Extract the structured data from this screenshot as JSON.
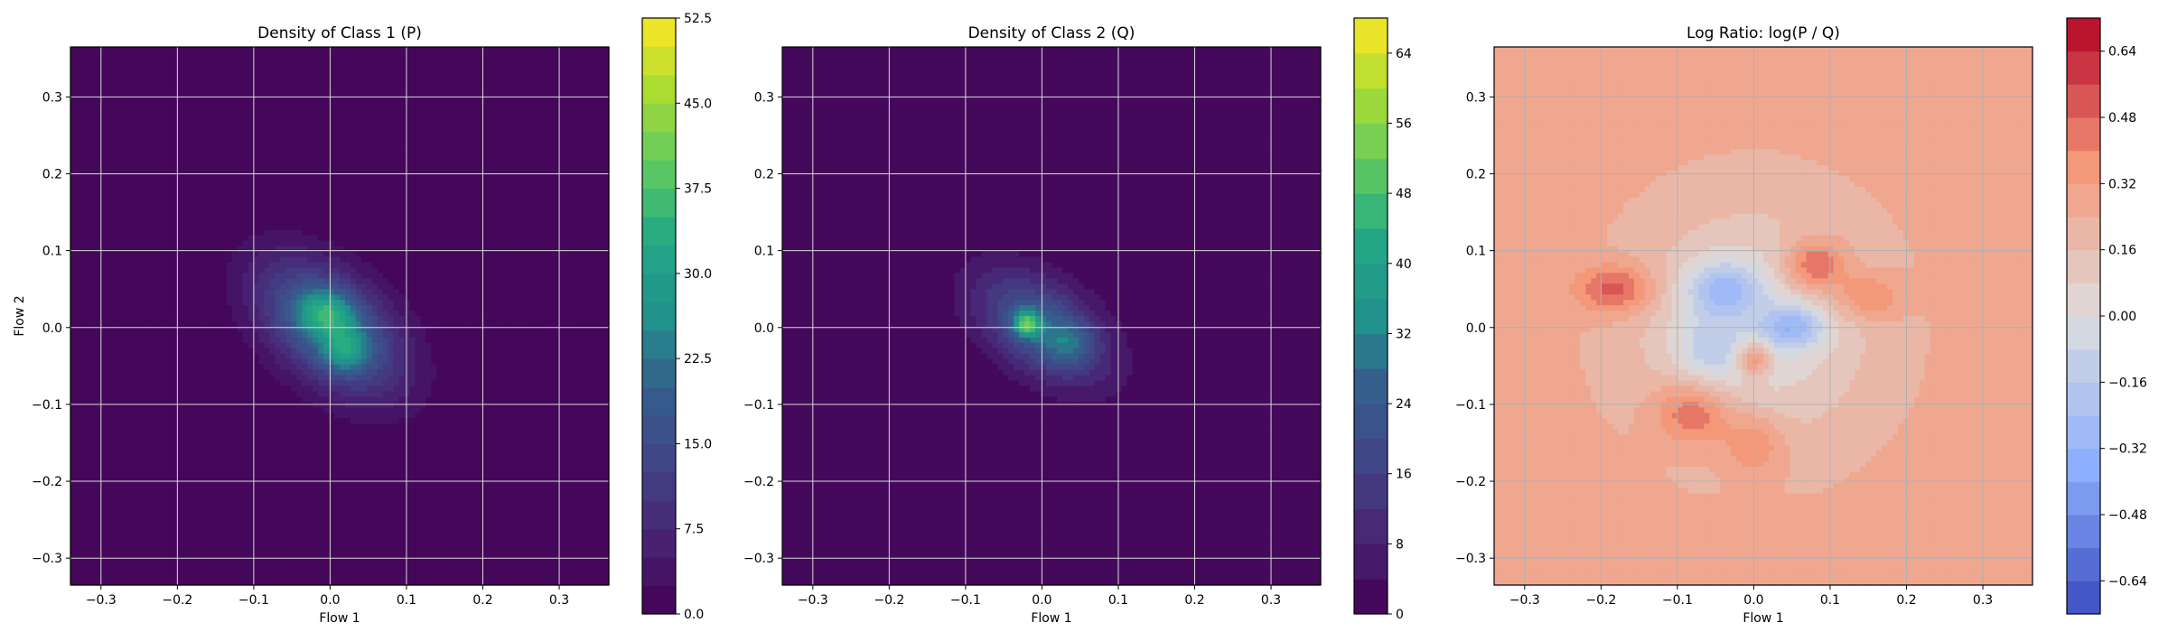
{
  "chart_data": [
    {
      "type": "heatmap",
      "title": "Density of Class 1 (P)",
      "xlabel": "Flow 1",
      "ylabel": "Flow 2",
      "xlim": [
        -0.34,
        0.365
      ],
      "ylim": [
        -0.335,
        0.365
      ],
      "xticks": [
        -0.3,
        -0.2,
        -0.1,
        0.0,
        0.1,
        0.2,
        0.3
      ],
      "yticks": [
        -0.3,
        -0.2,
        -0.1,
        0.0,
        0.1,
        0.2,
        0.3
      ],
      "xtick_labels": [
        "−0.3",
        "−0.2",
        "−0.1",
        "0.0",
        "0.1",
        "0.2",
        "0.3"
      ],
      "ytick_labels": [
        "−0.3",
        "−0.2",
        "−0.1",
        "0.0",
        "0.1",
        "0.2",
        "0.3"
      ],
      "grid": true,
      "colormap": "viridis",
      "colorbar": {
        "range": [
          0.0,
          52.5
        ],
        "levels": 21,
        "ticks": [
          0.0,
          7.5,
          15.0,
          22.5,
          30.0,
          37.5,
          45.0,
          52.5
        ],
        "tick_labels": [
          "0.0",
          "7.5",
          "15.0",
          "22.5",
          "30.0",
          "37.5",
          "45.0",
          "52.5"
        ]
      },
      "blobs": [
        {
          "cx": 0.0,
          "cy": 0.0,
          "sx": 0.075,
          "sy": 0.045,
          "angle": -40,
          "amp": 24
        },
        {
          "cx": -0.005,
          "cy": 0.02,
          "sx": 0.025,
          "sy": 0.02,
          "angle": 0,
          "amp": 14
        },
        {
          "cx": 0.02,
          "cy": -0.03,
          "sx": 0.02,
          "sy": 0.02,
          "angle": 0,
          "amp": 12
        }
      ]
    },
    {
      "type": "heatmap",
      "title": "Density of Class 2 (Q)",
      "xlabel": "Flow 1",
      "ylabel": "",
      "xlim": [
        -0.34,
        0.365
      ],
      "ylim": [
        -0.335,
        0.365
      ],
      "xticks": [
        -0.3,
        -0.2,
        -0.1,
        0.0,
        0.1,
        0.2,
        0.3
      ],
      "yticks": [
        -0.3,
        -0.2,
        -0.1,
        0.0,
        0.1,
        0.2,
        0.3
      ],
      "xtick_labels": [
        "−0.3",
        "−0.2",
        "−0.1",
        "0.0",
        "0.1",
        "0.2",
        "0.3"
      ],
      "ytick_labels": [
        "−0.3",
        "−0.2",
        "−0.1",
        "0.0",
        "0.1",
        "0.2",
        "0.3"
      ],
      "grid": true,
      "colormap": "viridis",
      "colorbar": {
        "range": [
          0,
          68
        ],
        "levels": 17,
        "ticks": [
          0,
          8,
          16,
          24,
          32,
          40,
          48,
          56,
          64
        ],
        "tick_labels": [
          "0",
          "8",
          "16",
          "24",
          "32",
          "40",
          "48",
          "56",
          "64"
        ]
      },
      "blobs": [
        {
          "cx": 0.0,
          "cy": 0.0,
          "sx": 0.068,
          "sy": 0.04,
          "angle": -35,
          "amp": 26
        },
        {
          "cx": -0.02,
          "cy": 0.005,
          "sx": 0.012,
          "sy": 0.012,
          "angle": 0,
          "amp": 30
        },
        {
          "cx": 0.035,
          "cy": -0.02,
          "sx": 0.022,
          "sy": 0.02,
          "angle": 0,
          "amp": 10
        }
      ]
    },
    {
      "type": "heatmap",
      "title": "Log Ratio: log(P / Q)",
      "xlabel": "Flow 1",
      "ylabel": "",
      "xlim": [
        -0.34,
        0.365
      ],
      "ylim": [
        -0.335,
        0.365
      ],
      "xticks": [
        -0.3,
        -0.2,
        -0.1,
        0.0,
        0.1,
        0.2,
        0.3
      ],
      "yticks": [
        -0.3,
        -0.2,
        -0.1,
        0.0,
        0.1,
        0.2,
        0.3
      ],
      "xtick_labels": [
        "−0.3",
        "−0.2",
        "−0.1",
        "0.0",
        "0.1",
        "0.2",
        "0.3"
      ],
      "ytick_labels": [
        "−0.3",
        "−0.2",
        "−0.1",
        "0.0",
        "0.1",
        "0.2",
        "0.3"
      ],
      "grid": true,
      "colormap": "coolwarm",
      "colorbar": {
        "range": [
          -0.72,
          0.72
        ],
        "levels": 18,
        "ticks": [
          -0.64,
          -0.48,
          -0.32,
          -0.16,
          0.0,
          0.16,
          0.32,
          0.48,
          0.64
        ],
        "tick_labels": [
          "−0.64",
          "−0.48",
          "−0.32",
          "−0.16",
          "0.00",
          "0.16",
          "0.32",
          "0.48",
          "0.64"
        ]
      },
      "base_value": 0.27,
      "blobs": [
        {
          "cx": 0.0,
          "cy": 0.0,
          "sx": 0.11,
          "sy": 0.11,
          "angle": 0,
          "amp": -0.27
        },
        {
          "cx": -0.04,
          "cy": 0.05,
          "sx": 0.035,
          "sy": 0.025,
          "angle": 0,
          "amp": -0.35
        },
        {
          "cx": 0.05,
          "cy": 0.0,
          "sx": 0.03,
          "sy": 0.02,
          "angle": 0,
          "amp": -0.35
        },
        {
          "cx": -0.06,
          "cy": -0.03,
          "sx": 0.03,
          "sy": 0.03,
          "angle": 0,
          "amp": -0.2
        },
        {
          "cx": 0.08,
          "cy": 0.08,
          "sx": 0.03,
          "sy": 0.025,
          "angle": 0,
          "amp": 0.35
        },
        {
          "cx": -0.18,
          "cy": 0.05,
          "sx": 0.035,
          "sy": 0.022,
          "angle": 0,
          "amp": 0.3
        },
        {
          "cx": -0.08,
          "cy": -0.11,
          "sx": 0.035,
          "sy": 0.03,
          "angle": 0,
          "amp": 0.3
        },
        {
          "cx": 0.0,
          "cy": -0.04,
          "sx": 0.015,
          "sy": 0.015,
          "angle": 0,
          "amp": 0.35
        },
        {
          "cx": 0.15,
          "cy": 0.04,
          "sx": 0.03,
          "sy": 0.02,
          "angle": 0,
          "amp": 0.22
        },
        {
          "cx": 0.0,
          "cy": -0.15,
          "sx": 0.03,
          "sy": 0.03,
          "angle": 0,
          "amp": 0.2
        }
      ]
    }
  ]
}
